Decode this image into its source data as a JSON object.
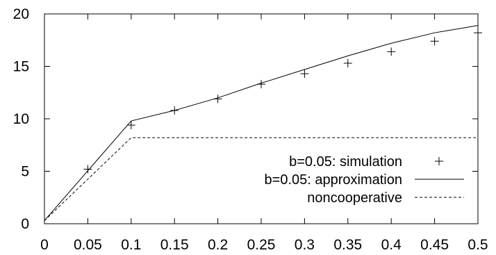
{
  "chart_data": {
    "type": "line",
    "title": "",
    "xlabel": "",
    "ylabel": "",
    "xlim": [
      0,
      0.5
    ],
    "ylim": [
      0,
      20
    ],
    "x_ticks": [
      "0",
      "0.05",
      "0.1",
      "0.15",
      "0.2",
      "0.25",
      "0.3",
      "0.35",
      "0.4",
      "0.45",
      "0.5"
    ],
    "y_ticks": [
      "0",
      "5",
      "10",
      "15",
      "20"
    ],
    "grid": false,
    "legend_position": "lower-right",
    "series": [
      {
        "name": "b=0.05: simulation",
        "style": "points-plus",
        "x": [
          0.05,
          0.1,
          0.15,
          0.2,
          0.25,
          0.3,
          0.35,
          0.4,
          0.45,
          0.5
        ],
        "y": [
          5.2,
          9.4,
          10.8,
          11.9,
          13.3,
          14.3,
          15.3,
          16.4,
          17.4,
          18.2
        ]
      },
      {
        "name": "b=0.05: approximation",
        "style": "solid",
        "x": [
          0,
          0.1,
          0.15,
          0.2,
          0.25,
          0.3,
          0.35,
          0.4,
          0.45,
          0.5
        ],
        "y": [
          0.3,
          9.8,
          10.8,
          12.0,
          13.4,
          14.7,
          16.0,
          17.2,
          18.2,
          18.9
        ]
      },
      {
        "name": "noncooperative",
        "style": "dashed",
        "x": [
          0,
          0.1,
          0.5
        ],
        "y": [
          0.3,
          8.2,
          8.2
        ]
      }
    ]
  }
}
